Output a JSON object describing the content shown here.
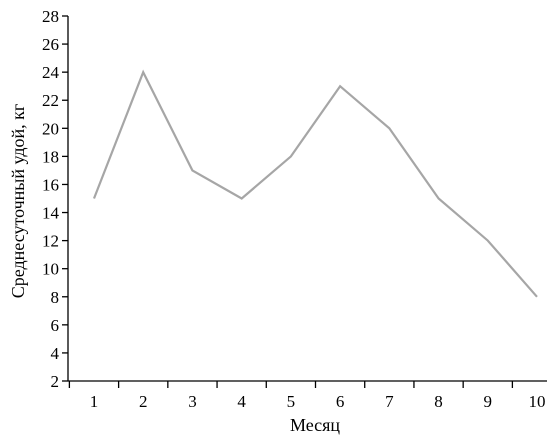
{
  "chart_data": {
    "type": "line",
    "title": "",
    "xlabel": "Месяц",
    "ylabel": "Среднесуточный удой, кг",
    "x": [
      1,
      2,
      3,
      4,
      5,
      6,
      7,
      8,
      9,
      10
    ],
    "y_ticks": [
      2,
      4,
      6,
      8,
      10,
      12,
      14,
      16,
      18,
      20,
      22,
      24,
      26,
      28
    ],
    "ylim": [
      2,
      28
    ],
    "grid": false,
    "series": [
      {
        "values": [
          15,
          24,
          17,
          15,
          18,
          23,
          20,
          15,
          12,
          8
        ],
        "color": "#a6a6a6"
      }
    ]
  }
}
